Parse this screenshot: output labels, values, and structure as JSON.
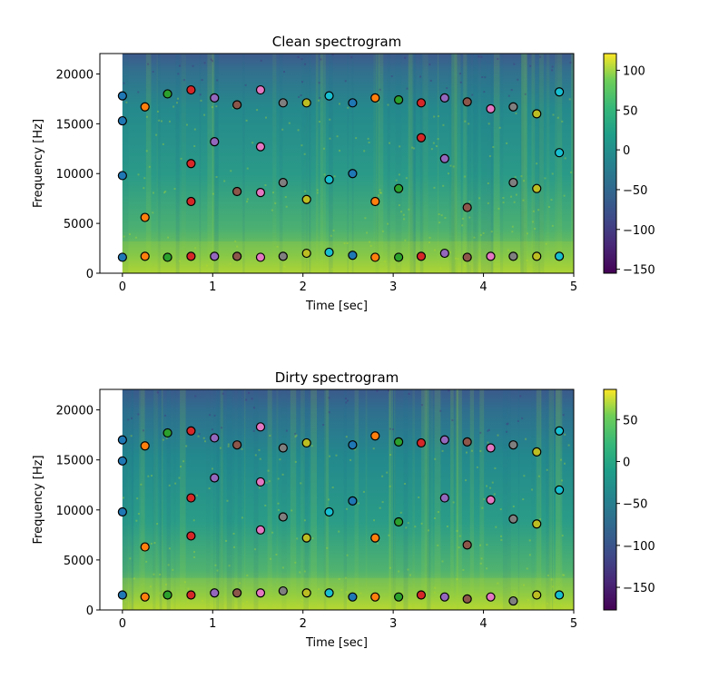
{
  "chart_data": [
    {
      "type": "heatmap",
      "title": "Clean spectrogram",
      "xlabel": "Time [sec]",
      "ylabel": "Frequency [Hz]",
      "xlim": [
        -0.25,
        5
      ],
      "ylim": [
        0,
        22050
      ],
      "xticks": [
        0,
        1,
        2,
        3,
        4,
        5
      ],
      "xtick_labels": [
        "0",
        "1",
        "2",
        "3",
        "4",
        "5"
      ],
      "yticks": [
        0,
        5000,
        10000,
        15000,
        20000
      ],
      "ytick_labels": [
        "0",
        "5000",
        "10000",
        "15000",
        "20000"
      ],
      "colormap": "viridis",
      "colorbar": {
        "range": [
          -155,
          121
        ],
        "ticks": [
          100,
          50,
          0,
          -50,
          -100,
          -150
        ],
        "tick_labels": [
          "100",
          "50",
          "0",
          "−50",
          "−100",
          "−150"
        ]
      },
      "peaks": [
        {
          "t": 0.0,
          "color": "#1f77b4",
          "freqs": [
            17800,
            15300,
            9800,
            1600
          ]
        },
        {
          "t": 0.25,
          "color": "#ff7f0e",
          "freqs": [
            16700,
            5600,
            1700
          ]
        },
        {
          "t": 0.5,
          "color": "#2ca02c",
          "freqs": [
            18000,
            1600
          ]
        },
        {
          "t": 0.76,
          "color": "#d62728",
          "freqs": [
            18400,
            11000,
            7200,
            1700
          ]
        },
        {
          "t": 1.02,
          "color": "#9467bd",
          "freqs": [
            17600,
            13200,
            1700
          ]
        },
        {
          "t": 1.27,
          "color": "#8c564b",
          "freqs": [
            16900,
            8200,
            1700
          ]
        },
        {
          "t": 1.53,
          "color": "#e377c2",
          "freqs": [
            18400,
            12700,
            8100,
            1600
          ]
        },
        {
          "t": 1.78,
          "color": "#7f7f7f",
          "freqs": [
            17100,
            9100,
            1700
          ]
        },
        {
          "t": 2.04,
          "color": "#bcbd22",
          "freqs": [
            17100,
            7400,
            2000
          ]
        },
        {
          "t": 2.29,
          "color": "#17becf",
          "freqs": [
            17800,
            9400,
            2100
          ]
        },
        {
          "t": 2.55,
          "color": "#1f77b4",
          "freqs": [
            17100,
            10000,
            1800
          ]
        },
        {
          "t": 2.8,
          "color": "#ff7f0e",
          "freqs": [
            17600,
            7200,
            1600
          ]
        },
        {
          "t": 3.06,
          "color": "#2ca02c",
          "freqs": [
            17400,
            8500,
            1600
          ]
        },
        {
          "t": 3.31,
          "color": "#d62728",
          "freqs": [
            17100,
            13600,
            1700
          ]
        },
        {
          "t": 3.57,
          "color": "#9467bd",
          "freqs": [
            17600,
            11500,
            2000
          ]
        },
        {
          "t": 3.82,
          "color": "#8c564b",
          "freqs": [
            17200,
            6600,
            1600
          ]
        },
        {
          "t": 4.08,
          "color": "#e377c2",
          "freqs": [
            16500,
            1700
          ]
        },
        {
          "t": 4.33,
          "color": "#7f7f7f",
          "freqs": [
            16700,
            9100,
            1700
          ]
        },
        {
          "t": 4.59,
          "color": "#bcbd22",
          "freqs": [
            16000,
            8500,
            1700
          ]
        },
        {
          "t": 4.84,
          "color": "#17becf",
          "freqs": [
            18200,
            12100,
            1700
          ]
        }
      ]
    },
    {
      "type": "heatmap",
      "title": "Dirty spectrogram",
      "xlabel": "Time [sec]",
      "ylabel": "Frequency [Hz]",
      "xlim": [
        -0.25,
        5
      ],
      "ylim": [
        0,
        22050
      ],
      "xticks": [
        0,
        1,
        2,
        3,
        4,
        5
      ],
      "xtick_labels": [
        "0",
        "1",
        "2",
        "3",
        "4",
        "5"
      ],
      "yticks": [
        0,
        5000,
        10000,
        15000,
        20000
      ],
      "ytick_labels": [
        "0",
        "5000",
        "10000",
        "15000",
        "20000"
      ],
      "colormap": "viridis",
      "colorbar": {
        "range": [
          -177,
          86
        ],
        "ticks": [
          50,
          0,
          -50,
          -100,
          -150
        ],
        "tick_labels": [
          "50",
          "0",
          "−50",
          "−100",
          "−150"
        ]
      },
      "peaks": [
        {
          "t": 0.0,
          "color": "#1f77b4",
          "freqs": [
            17000,
            14900,
            9800,
            1500
          ]
        },
        {
          "t": 0.25,
          "color": "#ff7f0e",
          "freqs": [
            16400,
            6300,
            1300
          ]
        },
        {
          "t": 0.5,
          "color": "#2ca02c",
          "freqs": [
            17700,
            1500
          ]
        },
        {
          "t": 0.76,
          "color": "#d62728",
          "freqs": [
            17900,
            11200,
            7400,
            1500
          ]
        },
        {
          "t": 1.02,
          "color": "#9467bd",
          "freqs": [
            17200,
            13200,
            1700
          ]
        },
        {
          "t": 1.27,
          "color": "#8c564b",
          "freqs": [
            16500,
            1700
          ]
        },
        {
          "t": 1.53,
          "color": "#e377c2",
          "freqs": [
            18300,
            12800,
            8000,
            1700
          ]
        },
        {
          "t": 1.78,
          "color": "#7f7f7f",
          "freqs": [
            16200,
            9300,
            1900
          ]
        },
        {
          "t": 2.04,
          "color": "#bcbd22",
          "freqs": [
            16700,
            7200,
            1700
          ]
        },
        {
          "t": 2.29,
          "color": "#17becf",
          "freqs": [
            9800,
            1700
          ]
        },
        {
          "t": 2.55,
          "color": "#1f77b4",
          "freqs": [
            16500,
            10900,
            1300
          ]
        },
        {
          "t": 2.8,
          "color": "#ff7f0e",
          "freqs": [
            17400,
            7200,
            1300
          ]
        },
        {
          "t": 3.06,
          "color": "#2ca02c",
          "freqs": [
            16800,
            8800,
            1300
          ]
        },
        {
          "t": 3.31,
          "color": "#d62728",
          "freqs": [
            16700,
            1500
          ]
        },
        {
          "t": 3.57,
          "color": "#9467bd",
          "freqs": [
            17000,
            11200,
            1300
          ]
        },
        {
          "t": 3.82,
          "color": "#8c564b",
          "freqs": [
            16800,
            6500,
            1100
          ]
        },
        {
          "t": 4.08,
          "color": "#e377c2",
          "freqs": [
            16200,
            11000,
            1300
          ]
        },
        {
          "t": 4.33,
          "color": "#7f7f7f",
          "freqs": [
            16500,
            9100,
            900
          ]
        },
        {
          "t": 4.59,
          "color": "#bcbd22",
          "freqs": [
            15800,
            8600,
            1500
          ]
        },
        {
          "t": 4.84,
          "color": "#17becf",
          "freqs": [
            17900,
            12000,
            1500
          ]
        }
      ]
    }
  ]
}
